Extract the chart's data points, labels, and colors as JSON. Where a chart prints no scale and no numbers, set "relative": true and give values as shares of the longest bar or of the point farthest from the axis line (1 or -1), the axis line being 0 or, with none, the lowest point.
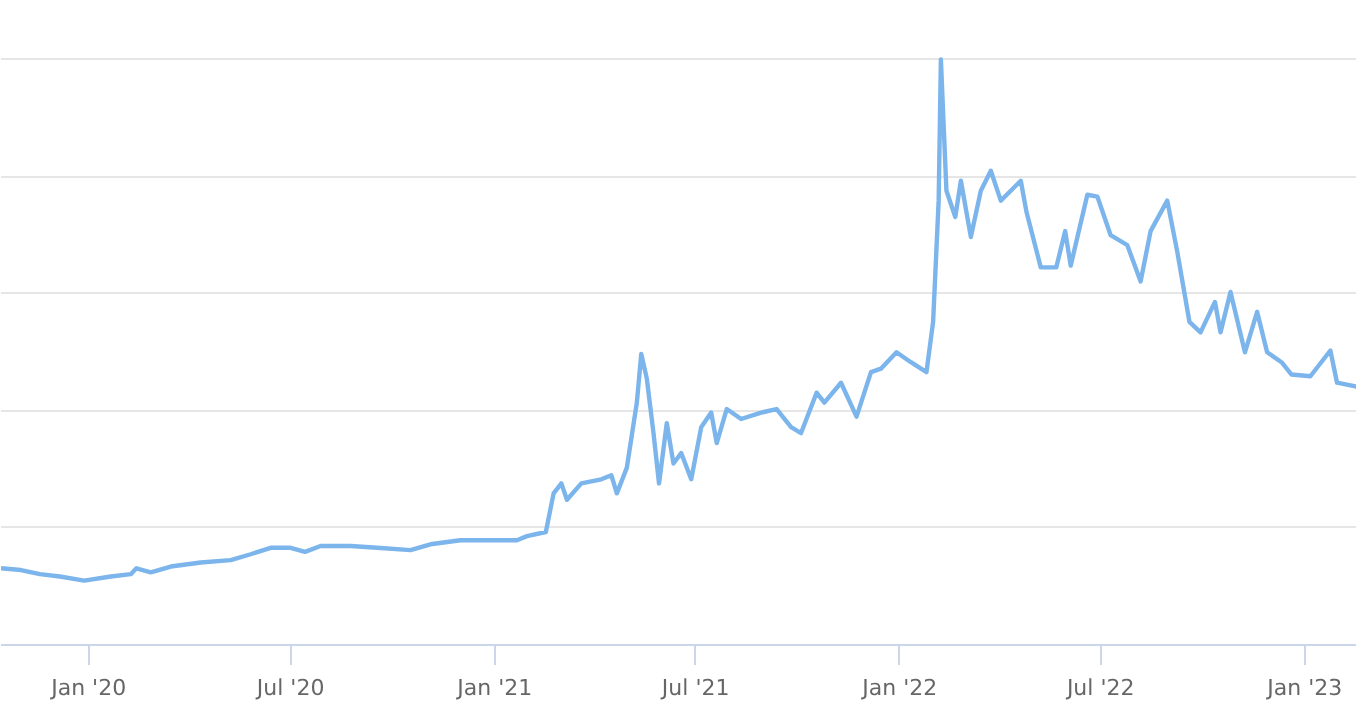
{
  "chart_data": {
    "type": "line",
    "relative": true,
    "grid": "y",
    "marker": "none",
    "line_style": "solid",
    "xlim": [
      "2019-10-14",
      "2023-02-17"
    ],
    "xticks": [
      {
        "value": "2020-01-01",
        "label": "Jan '20"
      },
      {
        "value": "2020-07-01",
        "label": "Jul '20"
      },
      {
        "value": "2021-01-01",
        "label": "Jan '21"
      },
      {
        "value": "2021-07-01",
        "label": "Jul '21"
      },
      {
        "value": "2022-01-01",
        "label": "Jan '22"
      },
      {
        "value": "2022-07-01",
        "label": "Jul '22"
      },
      {
        "value": "2023-01-01",
        "label": "Jan '23"
      }
    ],
    "x": [
      "2019-10-14",
      "2019-11-01",
      "2019-11-18",
      "2019-12-06",
      "2019-12-28",
      "2020-01-21",
      "2020-02-08",
      "2020-02-13",
      "2020-02-26",
      "2020-03-15",
      "2020-04-11",
      "2020-05-08",
      "2020-05-26",
      "2020-06-13",
      "2020-07-01",
      "2020-07-14",
      "2020-07-28",
      "2020-08-24",
      "2020-09-17",
      "2020-10-17",
      "2020-11-04",
      "2020-12-01",
      "2020-12-29",
      "2021-01-21",
      "2021-01-30",
      "2021-02-16",
      "2021-02-23",
      "2021-03-02",
      "2021-03-07",
      "2021-03-20",
      "2021-04-07",
      "2021-04-16",
      "2021-04-21",
      "2021-04-30",
      "2021-05-09",
      "2021-05-13",
      "2021-05-18",
      "2021-05-24",
      "2021-05-29",
      "2021-06-05",
      "2021-06-11",
      "2021-06-18",
      "2021-06-27",
      "2021-07-06",
      "2021-07-15",
      "2021-07-20",
      "2021-07-29",
      "2021-08-11",
      "2021-08-29",
      "2021-09-12",
      "2021-09-25",
      "2021-10-04",
      "2021-10-18",
      "2021-10-25",
      "2021-11-09",
      "2021-11-23",
      "2021-12-06",
      "2021-12-15",
      "2021-12-29",
      "2022-01-11",
      "2022-01-25",
      "2022-01-31",
      "2022-02-05",
      "2022-02-07",
      "2022-02-12",
      "2022-02-20",
      "2022-02-25",
      "2022-03-06",
      "2022-03-15",
      "2022-03-24",
      "2022-04-02",
      "2022-04-11",
      "2022-04-20",
      "2022-04-25",
      "2022-05-08",
      "2022-05-22",
      "2022-05-30",
      "2022-06-04",
      "2022-06-19",
      "2022-06-28",
      "2022-07-10",
      "2022-07-25",
      "2022-08-06",
      "2022-08-15",
      "2022-08-30",
      "2022-09-08",
      "2022-09-19",
      "2022-09-29",
      "2022-10-12",
      "2022-10-17",
      "2022-10-26",
      "2022-11-08",
      "2022-11-19",
      "2022-11-28",
      "2022-12-11",
      "2022-12-20",
      "2023-01-06",
      "2023-01-24",
      "2023-01-30",
      "2023-02-17"
    ],
    "series": [
      {
        "color": "#7cb5ec",
        "values": [
          0.131,
          0.128,
          0.121,
          0.117,
          0.11,
          0.117,
          0.121,
          0.131,
          0.124,
          0.134,
          0.141,
          0.145,
          0.155,
          0.166,
          0.166,
          0.159,
          0.169,
          0.169,
          0.166,
          0.162,
          0.172,
          0.179,
          0.179,
          0.179,
          0.186,
          0.193,
          0.259,
          0.276,
          0.248,
          0.276,
          0.283,
          0.29,
          0.259,
          0.303,
          0.414,
          0.497,
          0.455,
          0.362,
          0.276,
          0.379,
          0.31,
          0.328,
          0.283,
          0.372,
          0.397,
          0.345,
          0.403,
          0.386,
          0.397,
          0.403,
          0.372,
          0.362,
          0.431,
          0.414,
          0.448,
          0.39,
          0.466,
          0.472,
          0.5,
          0.483,
          0.466,
          0.552,
          0.759,
          1,
          0.776,
          0.731,
          0.793,
          0.697,
          0.776,
          0.81,
          0.759,
          0.776,
          0.793,
          0.741,
          0.645,
          0.645,
          0.707,
          0.648,
          0.769,
          0.766,
          0.7,
          0.683,
          0.621,
          0.707,
          0.759,
          0.672,
          0.552,
          0.534,
          0.586,
          0.534,
          0.603,
          0.5,
          0.569,
          0.5,
          0.483,
          0.462,
          0.459,
          0.503,
          0.448,
          0.441
        ]
      }
    ]
  }
}
